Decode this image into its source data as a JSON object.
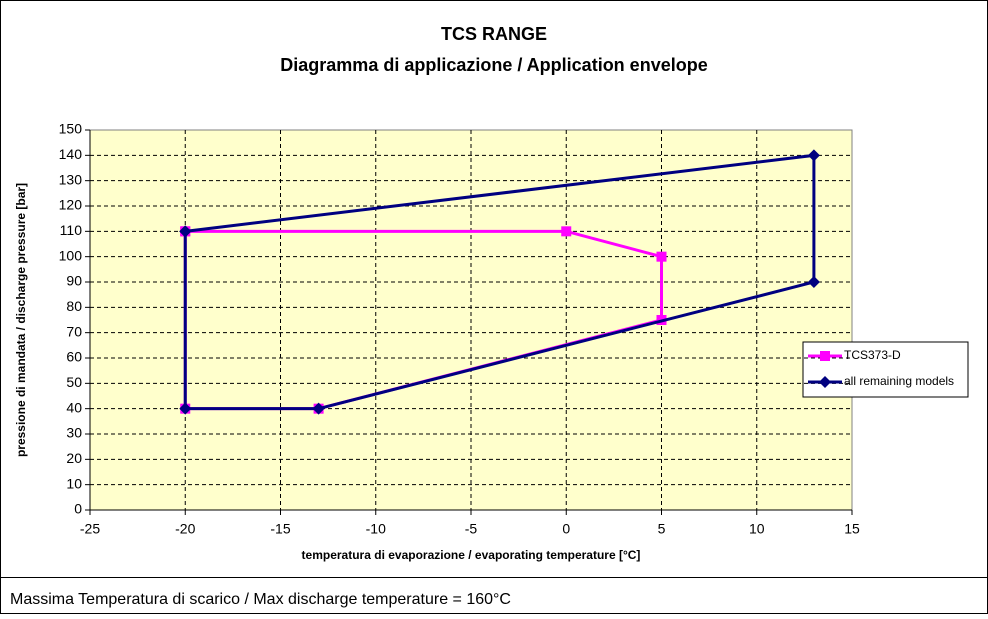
{
  "chart_data": {
    "type": "line",
    "title": "TCS RANGE",
    "subtitle": "Diagramma di applicazione / Application envelope",
    "xlabel": "temperatura di evaporazione / evaporating temperature [°C]",
    "ylabel": "pressione di mandata / discharge pressure [bar]",
    "annotation": "Massima Temperatura di scarico / Max discharge temperature = 160°C",
    "xlim": [
      -25,
      15
    ],
    "xticks": [
      -25,
      -20,
      -15,
      -10,
      -5,
      0,
      5,
      10,
      15
    ],
    "ylim": [
      0,
      150
    ],
    "yticks": [
      0,
      10,
      20,
      30,
      40,
      50,
      60,
      70,
      80,
      90,
      100,
      110,
      120,
      130,
      140,
      150
    ],
    "grid": true,
    "legend": "right",
    "series": [
      {
        "name": "TCS373-D",
        "color": "#ff00ff",
        "marker": "square",
        "x": [
          -20,
          0,
          5,
          5,
          -13,
          -20,
          -20
        ],
        "values": [
          110,
          110,
          100,
          75,
          40,
          40,
          110
        ]
      },
      {
        "name": "all remaining models",
        "color": "#000080",
        "marker": "diamond",
        "x": [
          -20,
          13,
          13,
          -13,
          -20,
          -20
        ],
        "values": [
          110,
          140,
          90,
          40,
          40,
          110
        ]
      }
    ]
  }
}
